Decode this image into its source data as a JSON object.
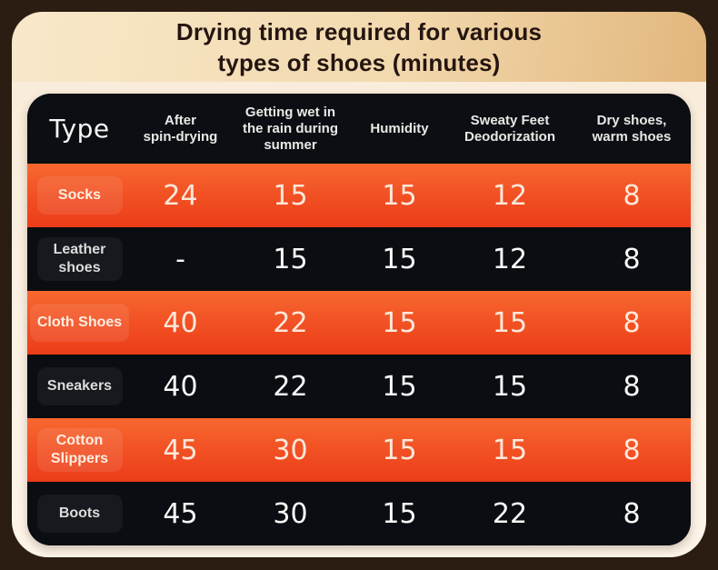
{
  "title": {
    "line1": "Drying time required for various",
    "line2": "types of shoes (minutes)"
  },
  "table": {
    "type_header": "Type",
    "column_headers": [
      "After\nspin-drying",
      "Getting wet in\nthe rain during\nsummer",
      "Humidity",
      "Sweaty Feet\nDeodorization",
      "Dry shoes,\nwarm shoes"
    ],
    "rows": [
      {
        "label": "Socks",
        "values": [
          "24",
          "15",
          "15",
          "12",
          "8"
        ]
      },
      {
        "label": "Leather\nshoes",
        "values": [
          "-",
          "15",
          "15",
          "12",
          "8"
        ]
      },
      {
        "label": "Cloth Shoes",
        "values": [
          "40",
          "22",
          "15",
          "15",
          "8"
        ]
      },
      {
        "label": "Sneakers",
        "values": [
          "40",
          "22",
          "15",
          "15",
          "8"
        ]
      },
      {
        "label": "Cotton\nSlippers",
        "values": [
          "45",
          "30",
          "15",
          "15",
          "8"
        ]
      },
      {
        "label": "Boots",
        "values": [
          "45",
          "30",
          "15",
          "22",
          "8"
        ]
      }
    ]
  },
  "colors": {
    "outer_background": "#2b1d12",
    "title_panel_gradient": [
      "#f8e8ca",
      "#e2b67c"
    ],
    "body_panel": "#fbeedd",
    "table_dark": "#0b0e12",
    "row_orange_gradient": [
      "#f8682f",
      "#ec3c19"
    ],
    "title_text": "#241510",
    "header_text": "#e8e8e6",
    "value_text_on_dark": "#fafafa",
    "value_text_on_orange": "#fbe8da"
  },
  "chart_data": {
    "type": "table",
    "title": "Drying time required for various types of shoes (minutes)",
    "units": "minutes",
    "columns": [
      "Type",
      "After spin-drying",
      "Getting wet in the rain during summer",
      "Humidity",
      "Sweaty Feet Deodorization",
      "Dry shoes, warm shoes"
    ],
    "rows": [
      [
        "Socks",
        24,
        15,
        15,
        12,
        8
      ],
      [
        "Leather shoes",
        "-",
        15,
        15,
        12,
        8
      ],
      [
        "Cloth Shoes",
        40,
        22,
        15,
        15,
        8
      ],
      [
        "Sneakers",
        40,
        22,
        15,
        15,
        8
      ],
      [
        "Cotton Slippers",
        45,
        30,
        15,
        15,
        8
      ],
      [
        "Boots",
        45,
        30,
        15,
        22,
        8
      ]
    ]
  }
}
